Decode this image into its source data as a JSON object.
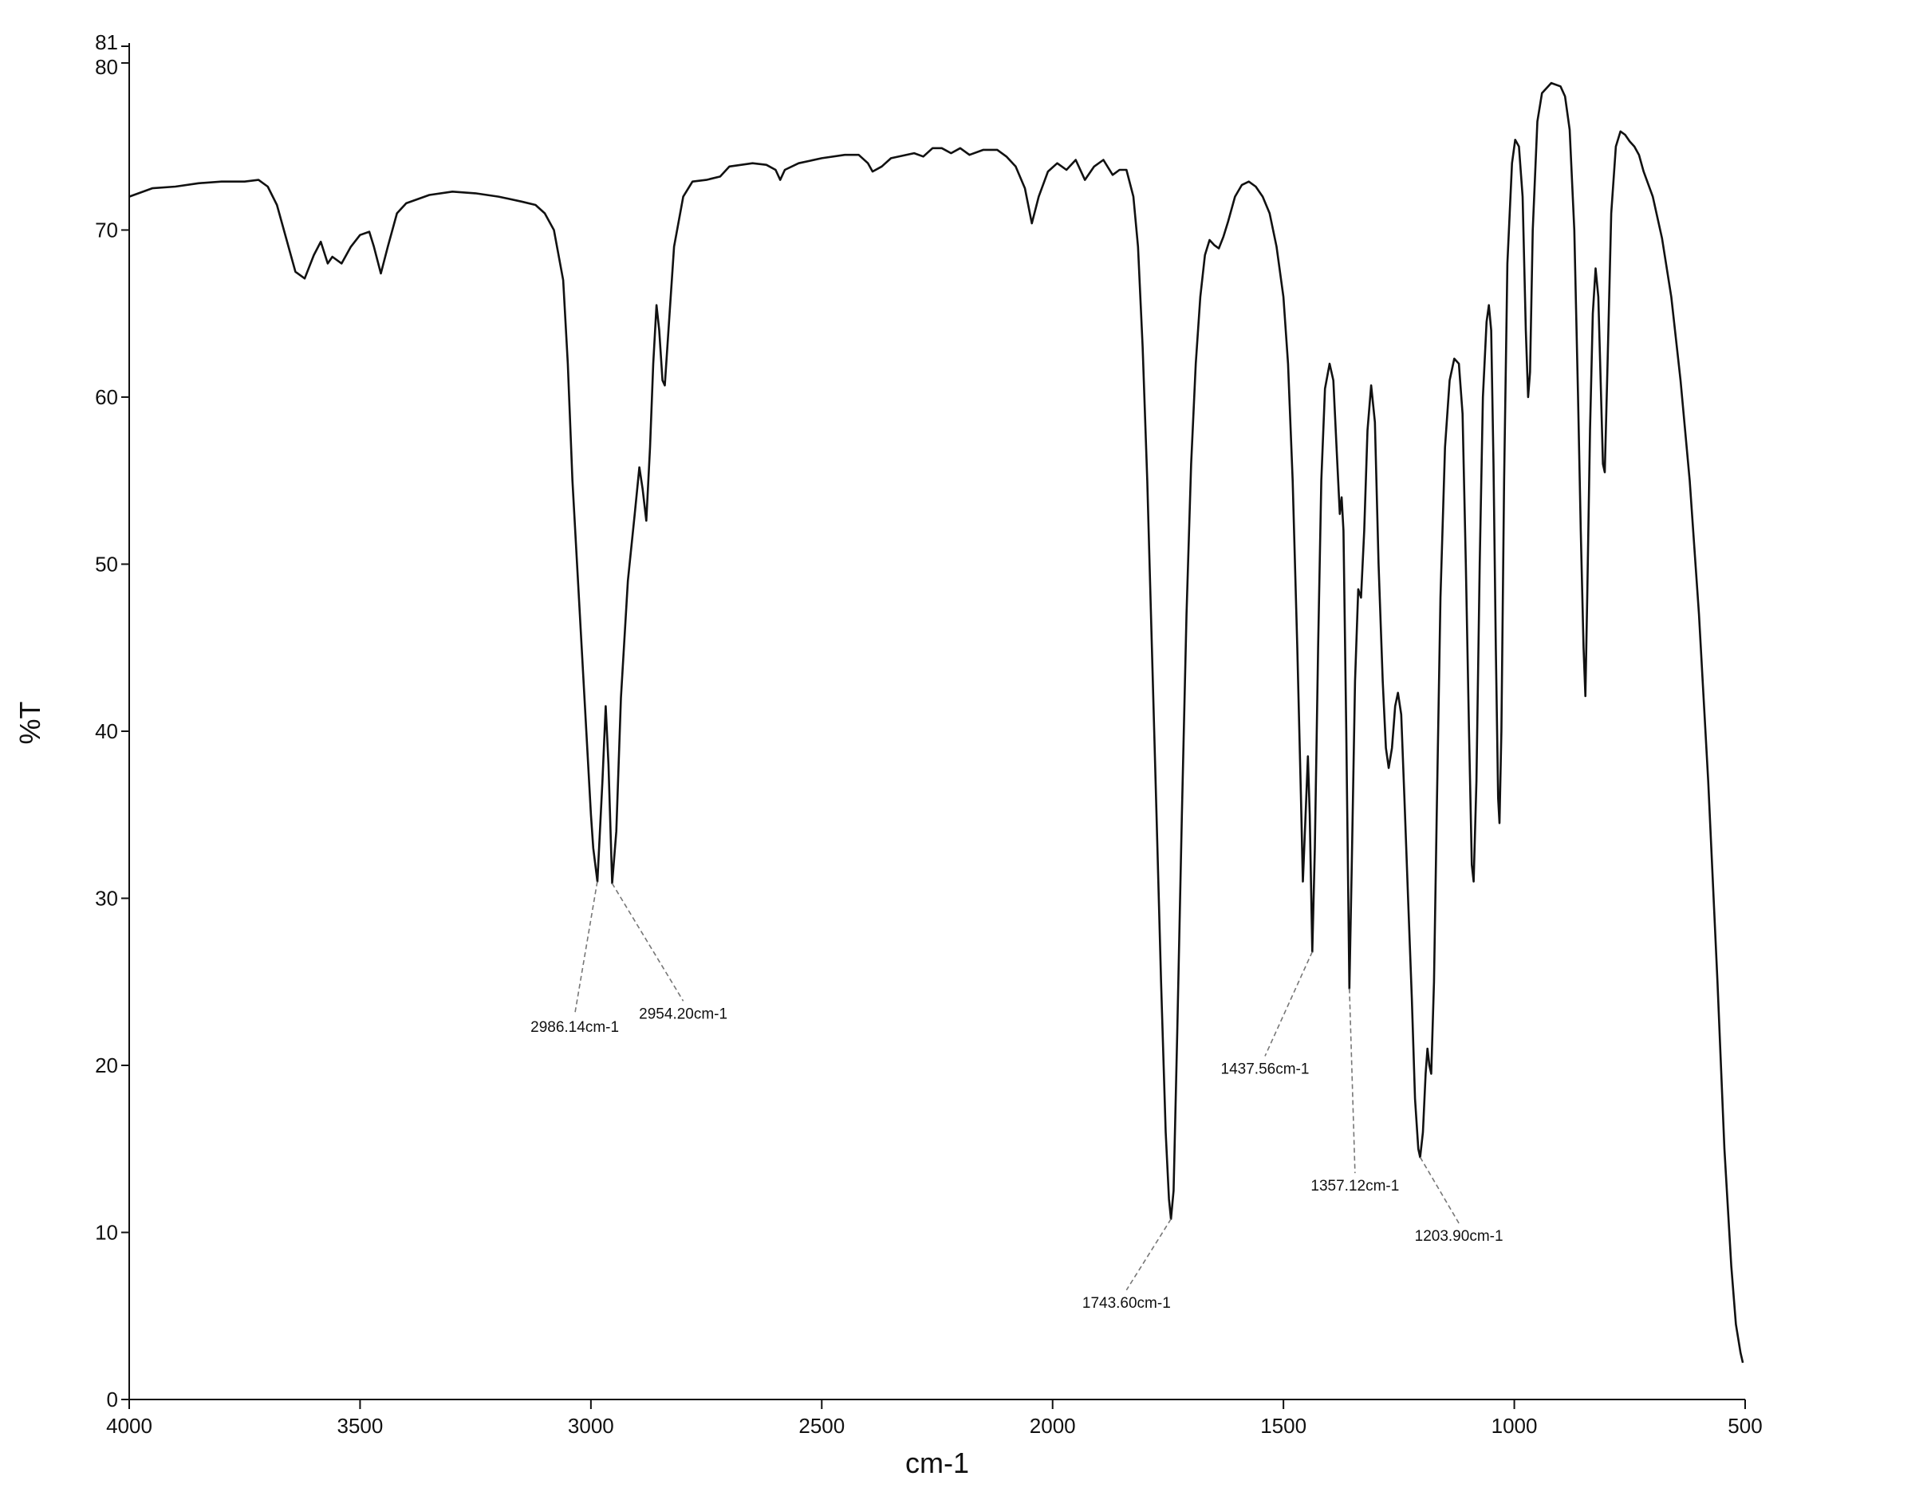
{
  "chart_data": {
    "type": "line",
    "title": "",
    "xlabel": "cm-1",
    "ylabel": "%T",
    "xlim": [
      4000,
      500
    ],
    "ylim": [
      0,
      81
    ],
    "x_reversed": true,
    "grid": false,
    "legend": "none",
    "line_color": "#111111",
    "x_ticks": [
      4000,
      3500,
      3000,
      2500,
      2000,
      1500,
      1000,
      500
    ],
    "x_tick_labels": [
      "4000",
      "3500",
      "3000",
      "2500",
      "2000",
      "1500",
      "1000",
      "500"
    ],
    "y_ticks": [
      0,
      10,
      20,
      30,
      40,
      50,
      60,
      70,
      80,
      81
    ],
    "y_tick_labels": [
      "0",
      "10",
      "20",
      "30",
      "40",
      "50",
      "60",
      "70",
      "80",
      "81"
    ],
    "series": [
      {
        "points": [
          [
            4000,
            72.0
          ],
          [
            3950,
            72.5
          ],
          [
            3900,
            72.6
          ],
          [
            3850,
            72.8
          ],
          [
            3800,
            72.9
          ],
          [
            3750,
            72.9
          ],
          [
            3720,
            73.0
          ],
          [
            3700,
            72.6
          ],
          [
            3680,
            71.5
          ],
          [
            3660,
            69.5
          ],
          [
            3640,
            67.5
          ],
          [
            3620,
            67.1
          ],
          [
            3600,
            68.5
          ],
          [
            3585,
            69.3
          ],
          [
            3570,
            68.0
          ],
          [
            3560,
            68.4
          ],
          [
            3540,
            68.0
          ],
          [
            3520,
            69.0
          ],
          [
            3500,
            69.7
          ],
          [
            3480,
            69.9
          ],
          [
            3470,
            69.0
          ],
          [
            3455,
            67.4
          ],
          [
            3440,
            69.0
          ],
          [
            3420,
            71.0
          ],
          [
            3400,
            71.6
          ],
          [
            3350,
            72.1
          ],
          [
            3300,
            72.3
          ],
          [
            3250,
            72.2
          ],
          [
            3200,
            72.0
          ],
          [
            3150,
            71.7
          ],
          [
            3120,
            71.5
          ],
          [
            3100,
            71.0
          ],
          [
            3080,
            70.0
          ],
          [
            3060,
            67.0
          ],
          [
            3050,
            62.0
          ],
          [
            3040,
            55.0
          ],
          [
            3030,
            50.0
          ],
          [
            3020,
            45.0
          ],
          [
            3010,
            40.0
          ],
          [
            3000,
            35.0
          ],
          [
            2995,
            33.0
          ],
          [
            2986,
            31.0
          ],
          [
            2975,
            37.0
          ],
          [
            2968,
            41.5
          ],
          [
            2962,
            38.0
          ],
          [
            2954,
            30.9
          ],
          [
            2945,
            34.0
          ],
          [
            2935,
            42.0
          ],
          [
            2920,
            49.0
          ],
          [
            2905,
            53.0
          ],
          [
            2895,
            55.8
          ],
          [
            2888,
            54.5
          ],
          [
            2880,
            52.6
          ],
          [
            2872,
            57.0
          ],
          [
            2865,
            62.0
          ],
          [
            2858,
            65.5
          ],
          [
            2852,
            64.0
          ],
          [
            2845,
            61.0
          ],
          [
            2840,
            60.7
          ],
          [
            2832,
            64.0
          ],
          [
            2820,
            69.0
          ],
          [
            2800,
            72.0
          ],
          [
            2780,
            72.9
          ],
          [
            2750,
            73.0
          ],
          [
            2720,
            73.2
          ],
          [
            2700,
            73.8
          ],
          [
            2650,
            74.0
          ],
          [
            2620,
            73.9
          ],
          [
            2600,
            73.6
          ],
          [
            2590,
            73.0
          ],
          [
            2580,
            73.6
          ],
          [
            2550,
            74.0
          ],
          [
            2500,
            74.3
          ],
          [
            2450,
            74.5
          ],
          [
            2420,
            74.5
          ],
          [
            2400,
            74.0
          ],
          [
            2390,
            73.5
          ],
          [
            2370,
            73.8
          ],
          [
            2350,
            74.3
          ],
          [
            2300,
            74.6
          ],
          [
            2280,
            74.4
          ],
          [
            2260,
            74.9
          ],
          [
            2240,
            74.9
          ],
          [
            2220,
            74.6
          ],
          [
            2200,
            74.9
          ],
          [
            2180,
            74.5
          ],
          [
            2150,
            74.8
          ],
          [
            2120,
            74.8
          ],
          [
            2100,
            74.4
          ],
          [
            2080,
            73.8
          ],
          [
            2060,
            72.5
          ],
          [
            2045,
            70.4
          ],
          [
            2030,
            72.0
          ],
          [
            2010,
            73.5
          ],
          [
            1990,
            74.0
          ],
          [
            1970,
            73.6
          ],
          [
            1950,
            74.2
          ],
          [
            1930,
            73.0
          ],
          [
            1910,
            73.8
          ],
          [
            1890,
            74.2
          ],
          [
            1870,
            73.3
          ],
          [
            1855,
            73.6
          ],
          [
            1840,
            73.6
          ],
          [
            1825,
            72.0
          ],
          [
            1815,
            69.0
          ],
          [
            1805,
            63.0
          ],
          [
            1795,
            55.0
          ],
          [
            1785,
            45.0
          ],
          [
            1775,
            35.0
          ],
          [
            1765,
            25.0
          ],
          [
            1755,
            16.0
          ],
          [
            1748,
            12.0
          ],
          [
            1743.6,
            10.8
          ],
          [
            1738,
            12.5
          ],
          [
            1730,
            22.0
          ],
          [
            1720,
            35.0
          ],
          [
            1710,
            47.0
          ],
          [
            1700,
            56.0
          ],
          [
            1690,
            62.0
          ],
          [
            1680,
            66.0
          ],
          [
            1670,
            68.5
          ],
          [
            1660,
            69.4
          ],
          [
            1650,
            69.1
          ],
          [
            1640,
            68.9
          ],
          [
            1630,
            69.6
          ],
          [
            1620,
            70.5
          ],
          [
            1605,
            72.0
          ],
          [
            1590,
            72.7
          ],
          [
            1575,
            72.9
          ],
          [
            1560,
            72.6
          ],
          [
            1545,
            72.0
          ],
          [
            1530,
            71.0
          ],
          [
            1515,
            69.0
          ],
          [
            1500,
            66.0
          ],
          [
            1490,
            62.0
          ],
          [
            1480,
            55.0
          ],
          [
            1470,
            45.0
          ],
          [
            1462,
            36.0
          ],
          [
            1458,
            31.0
          ],
          [
            1452,
            35.0
          ],
          [
            1447,
            38.5
          ],
          [
            1443,
            35.0
          ],
          [
            1437.56,
            26.8
          ],
          [
            1432,
            33.0
          ],
          [
            1425,
            45.0
          ],
          [
            1418,
            55.0
          ],
          [
            1410,
            60.5
          ],
          [
            1400,
            62.0
          ],
          [
            1392,
            61.0
          ],
          [
            1385,
            57.0
          ],
          [
            1378,
            53.0
          ],
          [
            1374,
            54.0
          ],
          [
            1370,
            52.0
          ],
          [
            1364,
            40.0
          ],
          [
            1357.12,
            24.6
          ],
          [
            1352,
            32.0
          ],
          [
            1345,
            43.0
          ],
          [
            1338,
            48.5
          ],
          [
            1332,
            48.0
          ],
          [
            1325,
            52.0
          ],
          [
            1318,
            58.0
          ],
          [
            1310,
            60.7
          ],
          [
            1302,
            58.5
          ],
          [
            1294,
            50.0
          ],
          [
            1285,
            43.0
          ],
          [
            1278,
            39.0
          ],
          [
            1272,
            37.8
          ],
          [
            1265,
            39.0
          ],
          [
            1258,
            41.5
          ],
          [
            1252,
            42.3
          ],
          [
            1245,
            41.0
          ],
          [
            1238,
            36.0
          ],
          [
            1230,
            30.0
          ],
          [
            1222,
            24.0
          ],
          [
            1215,
            18.0
          ],
          [
            1208,
            15.0
          ],
          [
            1203.9,
            14.5
          ],
          [
            1198,
            16.0
          ],
          [
            1192,
            19.5
          ],
          [
            1188,
            21.0
          ],
          [
            1184,
            20.0
          ],
          [
            1180,
            19.5
          ],
          [
            1174,
            25.0
          ],
          [
            1168,
            35.0
          ],
          [
            1160,
            48.0
          ],
          [
            1150,
            57.0
          ],
          [
            1140,
            61.0
          ],
          [
            1130,
            62.3
          ],
          [
            1120,
            62.0
          ],
          [
            1112,
            59.0
          ],
          [
            1105,
            50.0
          ],
          [
            1098,
            40.0
          ],
          [
            1092,
            32.0
          ],
          [
            1088,
            31.0
          ],
          [
            1082,
            37.0
          ],
          [
            1075,
            50.0
          ],
          [
            1068,
            60.0
          ],
          [
            1060,
            64.5
          ],
          [
            1055,
            65.5
          ],
          [
            1050,
            64.0
          ],
          [
            1045,
            56.0
          ],
          [
            1040,
            45.0
          ],
          [
            1035,
            36.0
          ],
          [
            1032,
            34.5
          ],
          [
            1028,
            40.0
          ],
          [
            1022,
            55.0
          ],
          [
            1015,
            68.0
          ],
          [
            1005,
            74.0
          ],
          [
            998,
            75.4
          ],
          [
            990,
            75.0
          ],
          [
            982,
            72.0
          ],
          [
            975,
            64.0
          ],
          [
            970,
            60.0
          ],
          [
            966,
            61.5
          ],
          [
            960,
            70.0
          ],
          [
            950,
            76.5
          ],
          [
            940,
            78.2
          ],
          [
            920,
            78.8
          ],
          [
            900,
            78.6
          ],
          [
            890,
            78.0
          ],
          [
            880,
            76.0
          ],
          [
            870,
            70.0
          ],
          [
            862,
            60.0
          ],
          [
            856,
            52.0
          ],
          [
            850,
            45.0
          ],
          [
            846,
            42.1
          ],
          [
            842,
            48.0
          ],
          [
            836,
            58.0
          ],
          [
            830,
            65.0
          ],
          [
            824,
            67.7
          ],
          [
            818,
            66.0
          ],
          [
            812,
            60.0
          ],
          [
            808,
            56.0
          ],
          [
            804,
            55.5
          ],
          [
            798,
            62.0
          ],
          [
            790,
            71.0
          ],
          [
            780,
            75.0
          ],
          [
            770,
            75.9
          ],
          [
            760,
            75.7
          ],
          [
            750,
            75.3
          ],
          [
            740,
            75.0
          ],
          [
            730,
            74.5
          ],
          [
            720,
            73.5
          ],
          [
            700,
            72.0
          ],
          [
            680,
            69.5
          ],
          [
            660,
            66.0
          ],
          [
            640,
            61.0
          ],
          [
            620,
            55.0
          ],
          [
            600,
            47.0
          ],
          [
            580,
            37.0
          ],
          [
            560,
            25.0
          ],
          [
            545,
            15.0
          ],
          [
            530,
            8.0
          ],
          [
            520,
            4.5
          ],
          [
            510,
            2.8
          ],
          [
            505,
            2.2
          ]
        ]
      }
    ],
    "annotations": [
      {
        "label": "2986.14cm-1",
        "peak": [
          2986.14,
          31.0
        ],
        "at": [
          3035,
          22.0
        ]
      },
      {
        "label": "2954.20cm-1",
        "peak": [
          2954.2,
          30.9
        ],
        "at": [
          2800,
          22.8
        ]
      },
      {
        "label": "1743.60cm-1",
        "peak": [
          1743.6,
          10.8
        ],
        "at": [
          1840,
          5.5
        ]
      },
      {
        "label": "1437.56cm-1",
        "peak": [
          1437.56,
          26.8
        ],
        "at": [
          1540,
          19.5
        ]
      },
      {
        "label": "1357.12cm-1",
        "peak": [
          1357.12,
          24.6
        ],
        "at": [
          1345,
          12.5
        ]
      },
      {
        "label": "1203.90cm-1",
        "peak": [
          1203.9,
          14.5
        ],
        "at": [
          1120,
          9.5
        ]
      }
    ]
  }
}
